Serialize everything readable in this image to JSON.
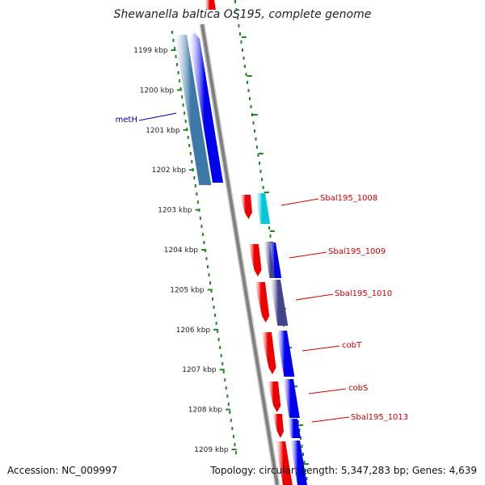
{
  "title": "Shewanella baltica OS195, complete genome",
  "footer": {
    "accession": "Accession: NC_009997",
    "summary": "Topology: circular; Length: 5,347,283 bp; Genes: 4,639"
  },
  "scale": {
    "tick_labels": [
      "1199 kbp",
      "1200 kbp",
      "1201 kbp",
      "1202 kbp",
      "1203 kbp",
      "1204 kbp",
      "1205 kbp",
      "1206 kbp",
      "1207 kbp",
      "1208 kbp",
      "1209 kbp"
    ]
  },
  "gene_labels": [
    {
      "text": "metH",
      "color": "#0000aa"
    },
    {
      "text": "Sbal195_1008",
      "color": "#cc0000"
    },
    {
      "text": "Sbal195_1009",
      "color": "#cc0000"
    },
    {
      "text": "Sbal195_1010",
      "color": "#cc0000"
    },
    {
      "text": "cobT",
      "color": "#cc0000"
    },
    {
      "text": "cobS",
      "color": "#cc0000"
    },
    {
      "text": "Sbal195_1013",
      "color": "#cc0000"
    }
  ],
  "colors": {
    "red": "#ee0000",
    "blue": "#0000ee",
    "cyan": "#00c8d4",
    "steel": "#3c78a8",
    "slate": "#44448a",
    "backbone": "#808080",
    "dots": "#228822"
  }
}
